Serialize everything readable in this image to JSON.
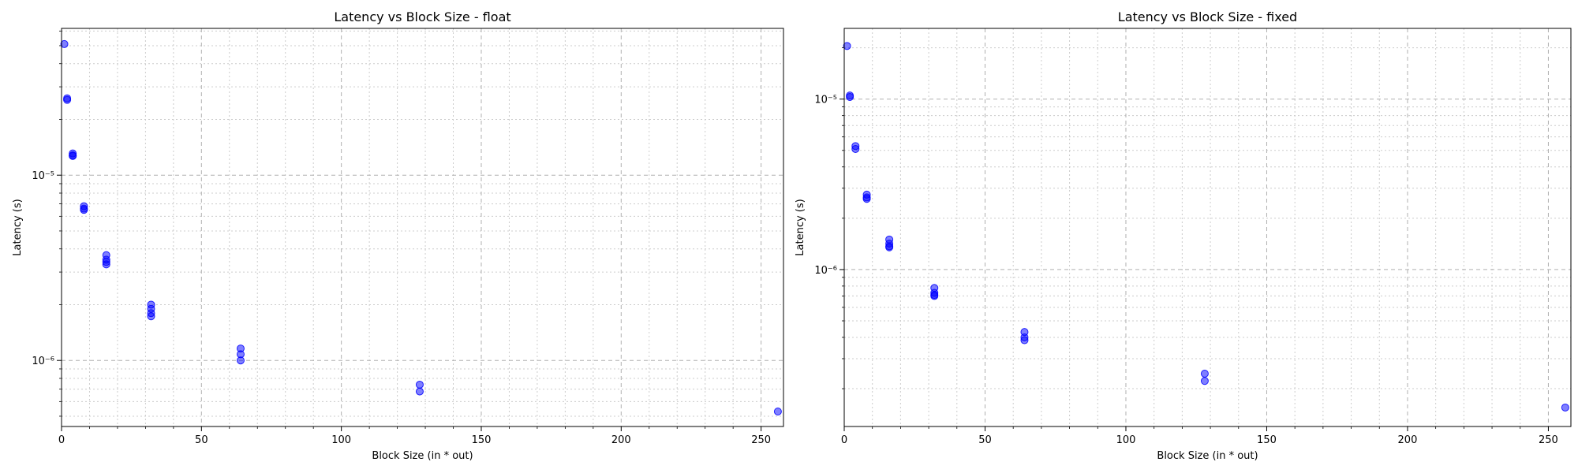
{
  "chart_data": [
    {
      "type": "scatter",
      "title": "Latency vs Block Size - float",
      "xlabel": "Block Size (in * out)",
      "ylabel": "Latency (s)",
      "xlim": [
        0,
        258
      ],
      "ylim": [
        4.4e-07,
        6.2e-05
      ],
      "yscale": "log",
      "grid": true,
      "x_ticks": [
        0,
        50,
        100,
        150,
        200,
        250
      ],
      "x_tick_labels": [
        "0",
        "50",
        "100",
        "150",
        "200",
        "250"
      ],
      "y_ticks": [
        1e-06,
        1e-05
      ],
      "y_tick_labels": [
        "10⁻⁶",
        "10⁻⁵"
      ],
      "marker_color": "#0000ff",
      "series": [
        {
          "points": [
            [
              1,
              5.1e-05
            ],
            [
              2,
              2.6e-05
            ],
            [
              2,
              2.55e-05
            ],
            [
              4,
              1.31e-05
            ],
            [
              4,
              1.28e-05
            ],
            [
              4,
              1.27e-05
            ],
            [
              8,
              6.8e-06
            ],
            [
              8,
              6.6e-06
            ],
            [
              8,
              6.5e-06
            ],
            [
              16,
              3.7e-06
            ],
            [
              16,
              3.5e-06
            ],
            [
              16,
              3.4e-06
            ],
            [
              16,
              3.3e-06
            ],
            [
              32,
              2e-06
            ],
            [
              32,
              1.9e-06
            ],
            [
              32,
              1.8e-06
            ],
            [
              32,
              1.73e-06
            ],
            [
              64,
              1.16e-06
            ],
            [
              64,
              1.08e-06
            ],
            [
              64,
              1e-06
            ],
            [
              128,
              7.4e-07
            ],
            [
              128,
              6.8e-07
            ],
            [
              256,
              5.3e-07
            ]
          ]
        }
      ]
    },
    {
      "type": "scatter",
      "title": "Latency vs Block Size - fixed",
      "xlabel": "Block Size (in * out)",
      "ylabel": "Latency (s)",
      "xlim": [
        0,
        258
      ],
      "ylim": [
        1.2e-07,
        2.6e-05
      ],
      "yscale": "log",
      "grid": true,
      "x_ticks": [
        0,
        50,
        100,
        150,
        200,
        250
      ],
      "x_tick_labels": [
        "0",
        "50",
        "100",
        "150",
        "200",
        "250"
      ],
      "y_ticks": [
        1e-06,
        1e-05
      ],
      "y_tick_labels": [
        "10⁻⁶",
        "10⁻⁵"
      ],
      "marker_color": "#0000ff",
      "series": [
        {
          "points": [
            [
              1,
              2.05e-05
            ],
            [
              2,
              1.05e-05
            ],
            [
              2,
              1.03e-05
            ],
            [
              4,
              5.3e-06
            ],
            [
              4,
              5.1e-06
            ],
            [
              8,
              2.75e-06
            ],
            [
              8,
              2.65e-06
            ],
            [
              8,
              2.6e-06
            ],
            [
              16,
              1.5e-06
            ],
            [
              16,
              1.42e-06
            ],
            [
              16,
              1.37e-06
            ],
            [
              16,
              1.35e-06
            ],
            [
              32,
              7.8e-07
            ],
            [
              32,
              7.3e-07
            ],
            [
              32,
              7.1e-07
            ],
            [
              32,
              7e-07
            ],
            [
              64,
              4.3e-07
            ],
            [
              64,
              4e-07
            ],
            [
              64,
              3.85e-07
            ],
            [
              128,
              2.45e-07
            ],
            [
              128,
              2.22e-07
            ],
            [
              256,
              1.55e-07
            ]
          ]
        }
      ]
    }
  ]
}
